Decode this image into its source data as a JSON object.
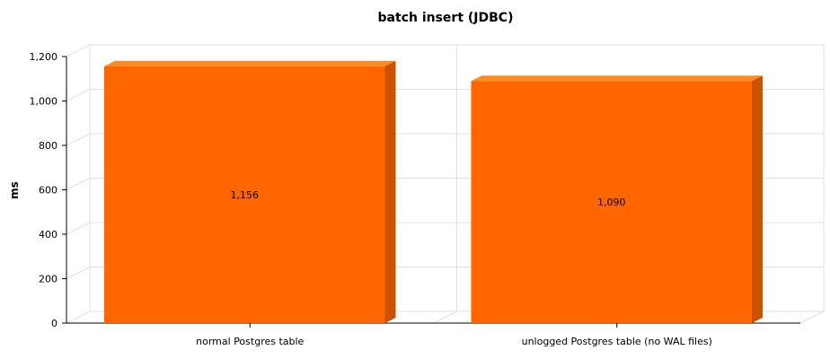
{
  "chart_data": {
    "type": "bar",
    "title": "batch insert (JDBC)",
    "xlabel": "",
    "ylabel": "ms",
    "categories": [
      "normal Postgres table",
      "unlogged Postgres table (no WAL files)"
    ],
    "series": [
      {
        "values": [
          1156,
          1090
        ]
      }
    ],
    "data_labels": [
      "1,156",
      "1,090"
    ],
    "ylim": [
      0,
      1200
    ],
    "yticks": [
      0,
      200,
      400,
      600,
      800,
      1000,
      1200
    ],
    "ytick_labels": [
      "0",
      "200",
      "400",
      "600",
      "800",
      "1,000",
      "1,200"
    ],
    "grid": true,
    "three_d": true,
    "colors": {
      "bar_front": "#ff6600",
      "bar_top": "#ff8a1e",
      "bar_side": "#cc5200"
    }
  }
}
